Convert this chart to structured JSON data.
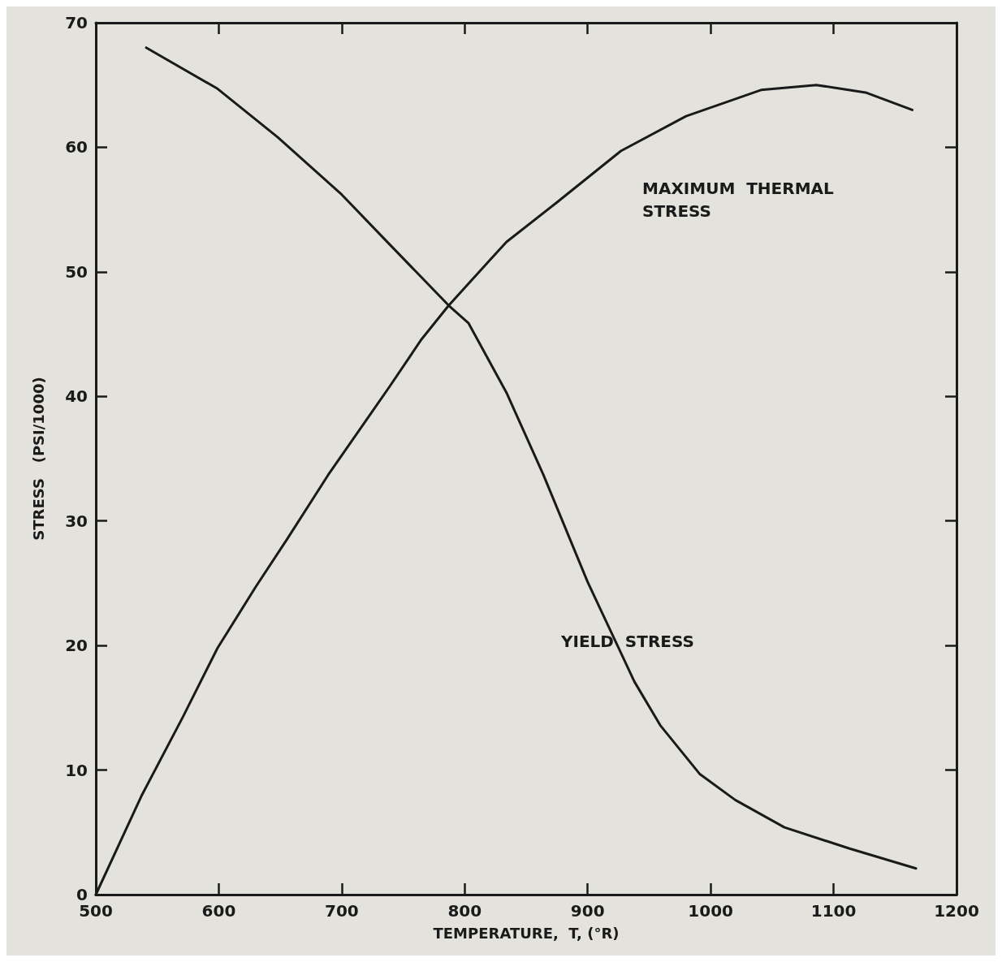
{
  "chart_data": {
    "type": "line",
    "xlabel": "TEMPERATURE,  T, (°R)",
    "ylabel": "STRESS   (PSI/1000)",
    "xlim": [
      500,
      1200
    ],
    "xticks": [
      500,
      600,
      700,
      800,
      900,
      1000,
      1100,
      1200
    ],
    "ylim": [
      0,
      70
    ],
    "yticks": [
      0,
      10,
      20,
      30,
      40,
      50,
      60,
      70
    ],
    "grid": false,
    "legend": false,
    "marker": "none",
    "line_style": "solid",
    "series": [
      {
        "name": "MAXIMUM  THERMAL STRESS",
        "color": "#1a1a1a",
        "x": [
          500,
          537,
          571,
          599,
          630,
          656,
          689,
          739,
          765,
          787,
          821,
          834,
          874,
          927,
          980,
          1041,
          1086,
          1126,
          1164
        ],
        "values": [
          0,
          7.9,
          14.3,
          19.8,
          24.7,
          28.6,
          33.7,
          40.8,
          44.6,
          47.3,
          51.0,
          52.4,
          55.5,
          59.7,
          62.5,
          64.6,
          65.0,
          64.4,
          63.0
        ]
      },
      {
        "name": "YIELD  STRESS",
        "color": "#1a1a1a",
        "x": [
          541,
          599,
          648,
          700,
          739,
          787,
          803,
          834,
          864,
          900,
          938,
          959,
          991,
          1020,
          1060,
          1113,
          1167
        ],
        "values": [
          68.0,
          64.7,
          60.8,
          56.2,
          52.2,
          47.3,
          45.9,
          40.3,
          33.7,
          25.1,
          17.1,
          13.6,
          9.7,
          7.6,
          5.4,
          3.7,
          2.1
        ]
      }
    ]
  }
}
